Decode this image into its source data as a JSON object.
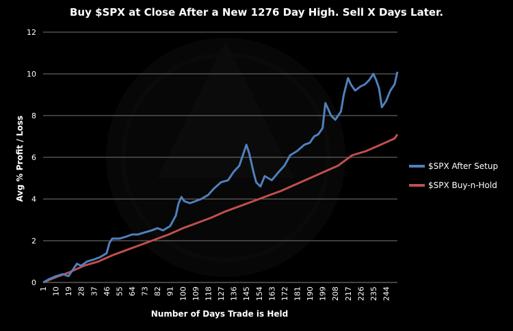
{
  "chart_data": {
    "type": "line",
    "title": "Buy $SPX at Close After a New 1276 Day High. Sell X Days Later.",
    "xlabel": "Number of Days Trade is Held",
    "ylabel": "Avg % Profit / Loss",
    "ylim": [
      0,
      12
    ],
    "yticks": [
      "0",
      "2",
      "4",
      "6",
      "8",
      "10",
      "12"
    ],
    "xlim": [
      1,
      252
    ],
    "xticks": [
      "1",
      "10",
      "19",
      "28",
      "37",
      "46",
      "55",
      "64",
      "73",
      "82",
      "91",
      "100",
      "109",
      "118",
      "127",
      "136",
      "145",
      "154",
      "163",
      "172",
      "181",
      "190",
      "199",
      "208",
      "217",
      "226",
      "235",
      "244"
    ],
    "grid": true,
    "legend_position": "right",
    "series": [
      {
        "name": "$SPX After Setup",
        "color": "#4f81bd",
        "x": [
          1,
          5,
          10,
          15,
          19,
          22,
          25,
          28,
          32,
          37,
          41,
          46,
          48,
          50,
          55,
          60,
          64,
          68,
          73,
          78,
          82,
          86,
          91,
          95,
          97,
          99,
          101,
          105,
          109,
          113,
          118,
          122,
          127,
          132,
          136,
          140,
          143,
          145,
          147,
          150,
          152,
          155,
          158,
          163,
          168,
          172,
          176,
          181,
          186,
          190,
          193,
          196,
          199,
          201,
          203,
          205,
          208,
          212,
          214,
          217,
          219,
          222,
          226,
          229,
          232,
          235,
          237,
          239,
          241,
          244,
          247,
          250,
          252
        ],
        "values": [
          0.0,
          0.15,
          0.3,
          0.4,
          0.3,
          0.6,
          0.9,
          0.8,
          1.0,
          1.1,
          1.2,
          1.4,
          1.9,
          2.1,
          2.1,
          2.2,
          2.3,
          2.3,
          2.4,
          2.5,
          2.6,
          2.5,
          2.7,
          3.2,
          3.8,
          4.1,
          3.9,
          3.8,
          3.9,
          4.0,
          4.2,
          4.5,
          4.8,
          4.9,
          5.3,
          5.6,
          6.2,
          6.6,
          6.2,
          5.3,
          4.8,
          4.6,
          5.1,
          4.9,
          5.3,
          5.6,
          6.1,
          6.3,
          6.6,
          6.7,
          7.0,
          7.1,
          7.4,
          8.6,
          8.3,
          8.0,
          7.8,
          8.2,
          9.0,
          9.8,
          9.5,
          9.2,
          9.4,
          9.5,
          9.7,
          10.0,
          9.7,
          9.3,
          8.4,
          8.7,
          9.2,
          9.5,
          10.1
        ]
      },
      {
        "name": "$SPX Buy-n-Hold",
        "color": "#c0504d",
        "x": [
          1,
          10,
          20,
          30,
          40,
          50,
          60,
          70,
          80,
          90,
          100,
          110,
          120,
          130,
          140,
          150,
          160,
          170,
          180,
          190,
          200,
          210,
          220,
          230,
          240,
          250,
          252
        ],
        "values": [
          0.0,
          0.25,
          0.5,
          0.8,
          1.0,
          1.3,
          1.55,
          1.8,
          2.05,
          2.3,
          2.6,
          2.85,
          3.1,
          3.4,
          3.65,
          3.9,
          4.15,
          4.4,
          4.7,
          5.0,
          5.3,
          5.6,
          6.1,
          6.3,
          6.6,
          6.9,
          7.1
        ]
      }
    ]
  }
}
